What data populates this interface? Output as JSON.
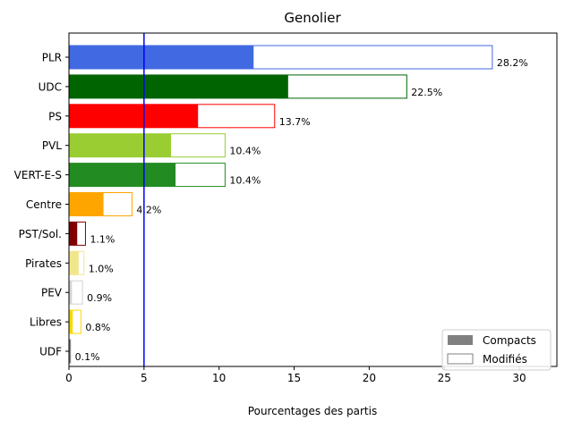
{
  "chart_data": {
    "type": "bar",
    "orientation": "horizontal",
    "title": "Genolier",
    "xlabel": "Pourcentages des partis",
    "ylabel": "",
    "xlim": [
      0,
      32.5
    ],
    "xticks": [
      0,
      5,
      10,
      15,
      20,
      25,
      30
    ],
    "reference_line": 5,
    "reference_line_color": "#0000ff",
    "categories": [
      "PLR",
      "UDC",
      "PS",
      "PVL",
      "VERT-E-S",
      "Centre",
      "PST/Sol.",
      "Pirates",
      "PEV",
      "Libres",
      "UDF"
    ],
    "colors": [
      "#4169e1",
      "#006400",
      "#ff0000",
      "#9acd32",
      "#228b22",
      "#ffa500",
      "#800000",
      "#f0e68c",
      "#d3d3d3",
      "#ffd700",
      "#808080"
    ],
    "series": [
      {
        "name": "Compacts",
        "values": [
          12.3,
          14.6,
          8.6,
          6.8,
          7.1,
          2.3,
          0.55,
          0.65,
          0.2,
          0.25,
          0.1
        ]
      },
      {
        "name": "Modifiés",
        "values": [
          28.2,
          22.5,
          13.7,
          10.4,
          10.4,
          4.2,
          1.1,
          1.0,
          0.9,
          0.8,
          0.1
        ]
      }
    ],
    "data_labels": [
      "28.2%",
      "22.5%",
      "13.7%",
      "10.4%",
      "10.4%",
      "4.2%",
      "1.1%",
      "1.0%",
      "0.9%",
      "0.8%",
      "0.1%"
    ],
    "legend": {
      "position": "bottom-right",
      "entries": [
        "Compacts",
        "Modifiés"
      ],
      "compact_color": "#808080",
      "modified_color": "#808080"
    },
    "grid": false
  }
}
